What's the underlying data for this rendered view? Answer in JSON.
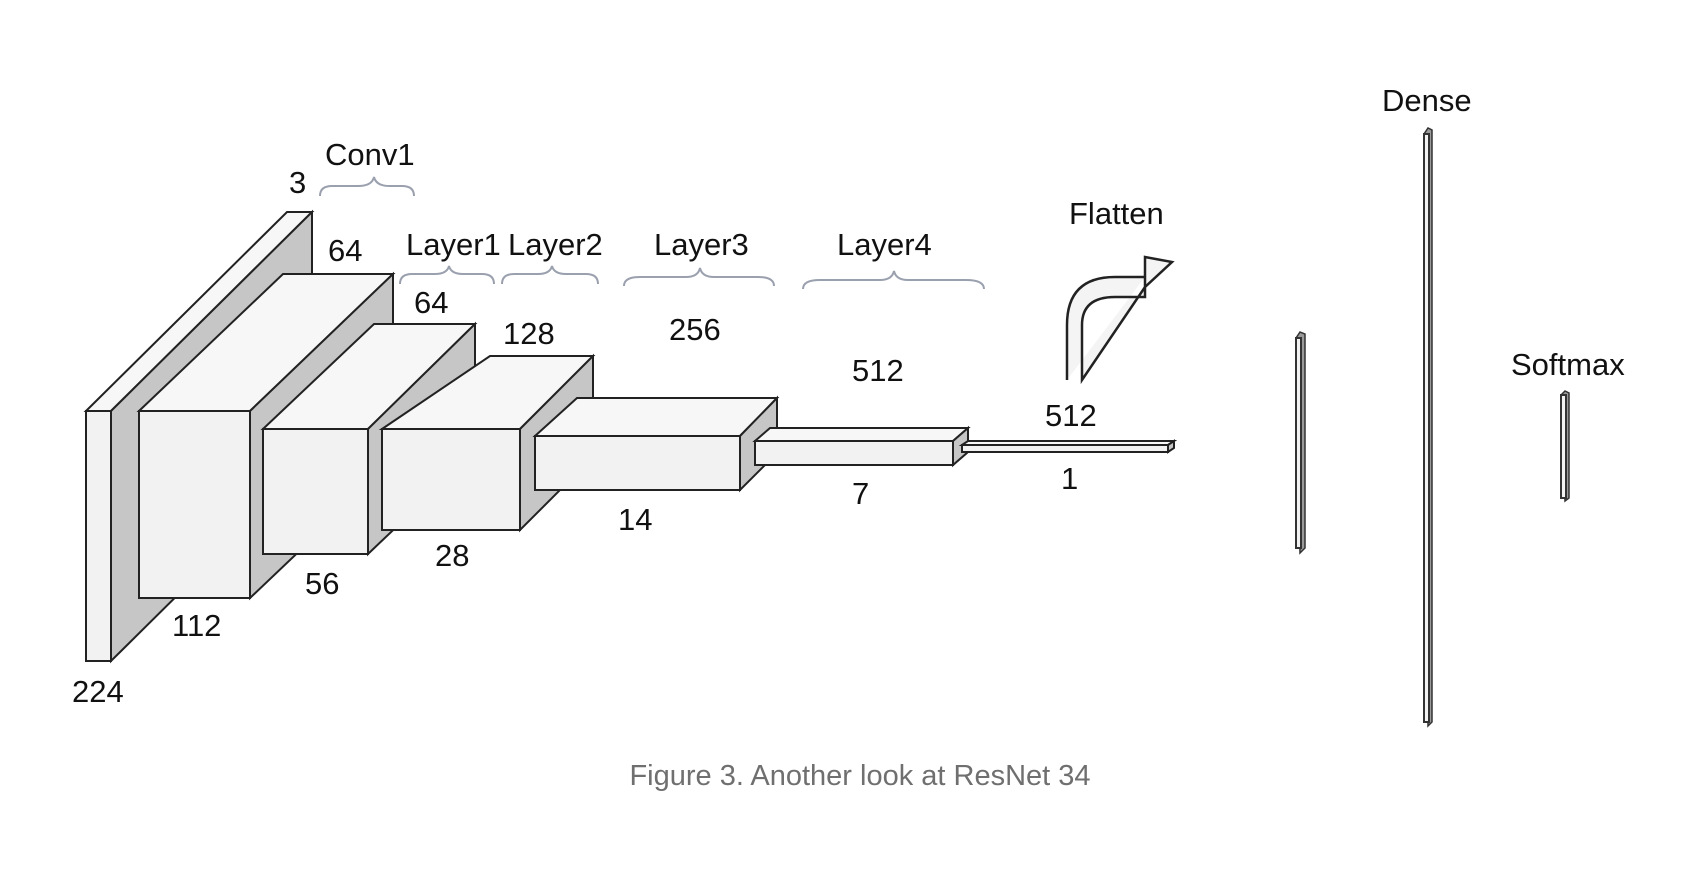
{
  "labels": {
    "stages": {
      "conv1": "Conv1",
      "layer1": "Layer1",
      "layer2": "Layer2",
      "layer3": "Layer3",
      "layer4": "Layer4",
      "flatten": "Flatten",
      "dense": "Dense",
      "softmax": "Softmax"
    },
    "channels": {
      "input": "3",
      "conv1": "64",
      "layer1": "64",
      "layer2": "128",
      "layer3": "256",
      "layer4": "512",
      "flatten": "512"
    },
    "spatial": {
      "input": "224",
      "conv1": "112",
      "layer1": "56",
      "layer2": "28",
      "layer3": "14",
      "layer4": "7",
      "flatten": "1"
    }
  },
  "caption": "Figure 3. Another look at ResNet 34"
}
